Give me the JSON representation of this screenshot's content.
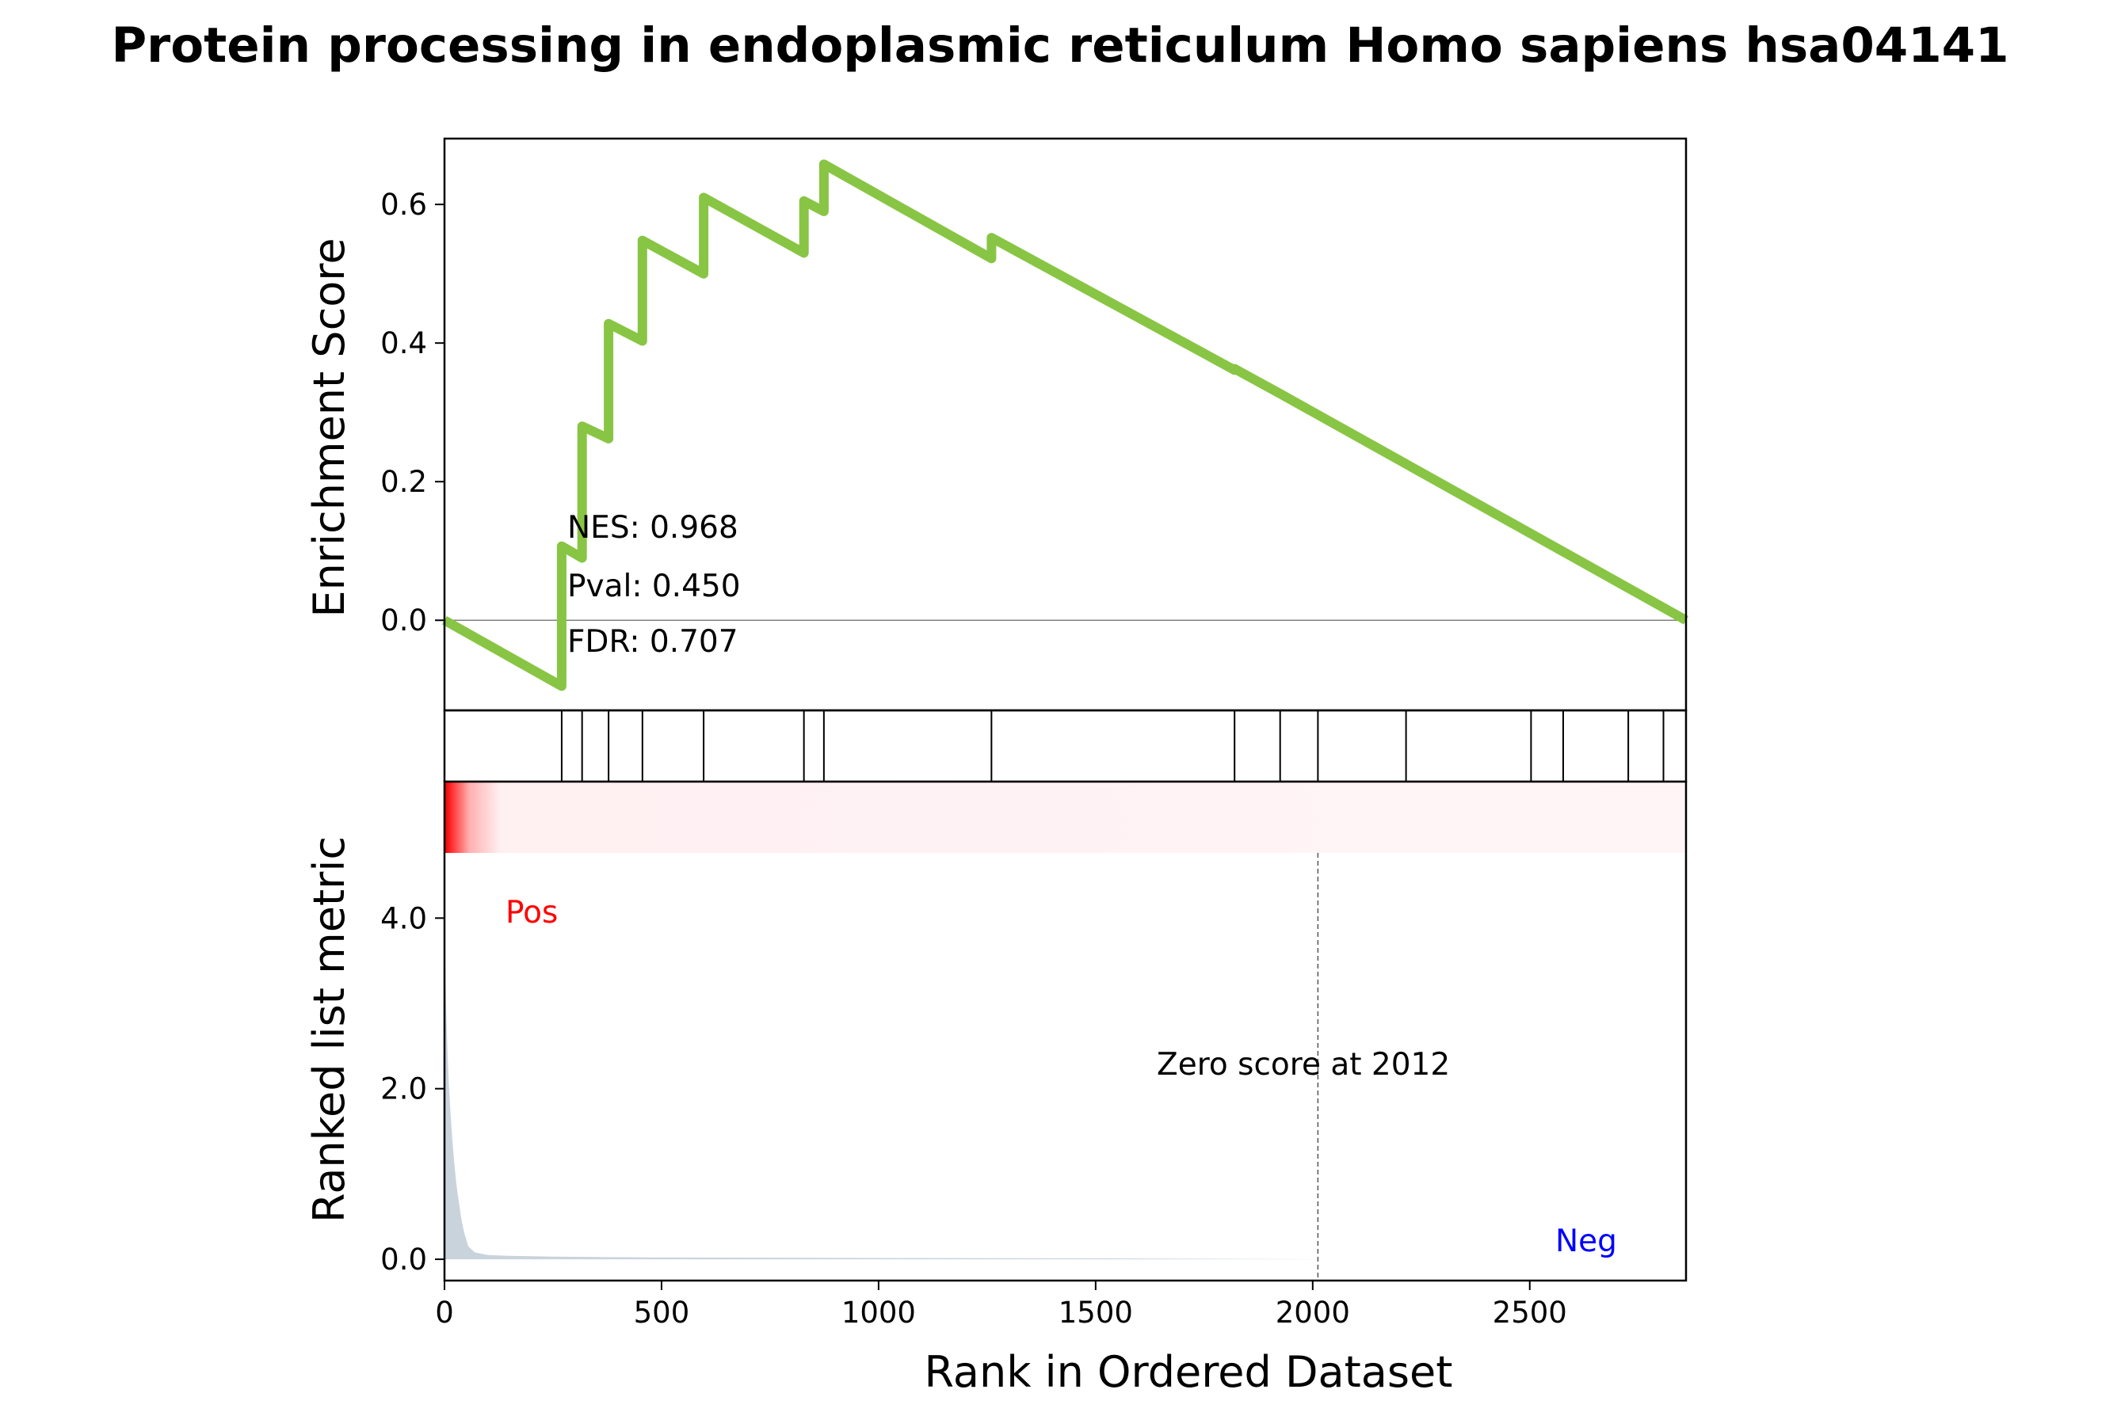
{
  "chart_data": {
    "type": "line",
    "title": "Protein processing in endoplasmic reticulum Homo sapiens hsa04141",
    "xlabel": "Rank in Ordered Dataset",
    "xlim": [
      0,
      2860
    ],
    "xticks": [
      0,
      500,
      1000,
      1500,
      2000,
      2500
    ],
    "es_panel": {
      "ylabel": "Enrichment Score",
      "ylim": [
        -0.13,
        0.695
      ],
      "yticks": [
        "0.0",
        "0.2",
        "0.4",
        "0.6"
      ],
      "ytick_values": [
        0.0,
        0.2,
        0.4,
        0.6
      ],
      "color": "#88c544",
      "zero_line": true,
      "running_es": {
        "x": [
          0,
          270,
          270,
          317,
          317,
          378,
          378,
          456,
          456,
          597,
          597,
          828,
          828,
          874,
          874,
          1260,
          1260,
          1820,
          1820,
          1925,
          1925,
          2860
        ],
        "y": [
          0.0,
          -0.095,
          0.107,
          0.09,
          0.28,
          0.262,
          0.428,
          0.403,
          0.548,
          0.5,
          0.61,
          0.53,
          0.605,
          0.59,
          0.658,
          0.522,
          0.552,
          0.361,
          0.363,
          0.327,
          0.327,
          0.0
        ]
      },
      "stats": {
        "nes": "NES: 0.968",
        "pval": "Pval: 0.450",
        "fdr": "FDR: 0.707"
      }
    },
    "hits_panel": {
      "positions": [
        270,
        317,
        378,
        456,
        597,
        828,
        874,
        1260,
        1820,
        1925,
        2012,
        2215,
        2503,
        2577,
        2727,
        2808
      ]
    },
    "rank_panel": {
      "ylabel": "Ranked list metric",
      "ylim": [
        -0.25,
        5.6
      ],
      "yticks": [
        "0.0",
        "2.0",
        "4.0"
      ],
      "ytick_values": [
        0.0,
        2.0,
        4.0
      ],
      "fill_color": "#c9d3dc",
      "metric": {
        "x": [
          0,
          2,
          4,
          7,
          10,
          14,
          18,
          22,
          26,
          30,
          35,
          40,
          46,
          55,
          70,
          100,
          150,
          250,
          500,
          1000,
          1500,
          2012,
          2500,
          2860
        ],
        "y": [
          4.0,
          3.4,
          2.9,
          2.45,
          2.05,
          1.7,
          1.4,
          1.15,
          0.95,
          0.78,
          0.6,
          0.44,
          0.3,
          0.15,
          0.08,
          0.05,
          0.04,
          0.03,
          0.02,
          0.015,
          0.01,
          0.0,
          0.0,
          0.0
        ]
      },
      "zero_score_rank": 2012,
      "zero_score_label": "Zero score at 2012",
      "pos_label": "Pos",
      "neg_label": "Neg",
      "pos_color": "#ff0000",
      "neg_color": "#0000ff"
    }
  }
}
